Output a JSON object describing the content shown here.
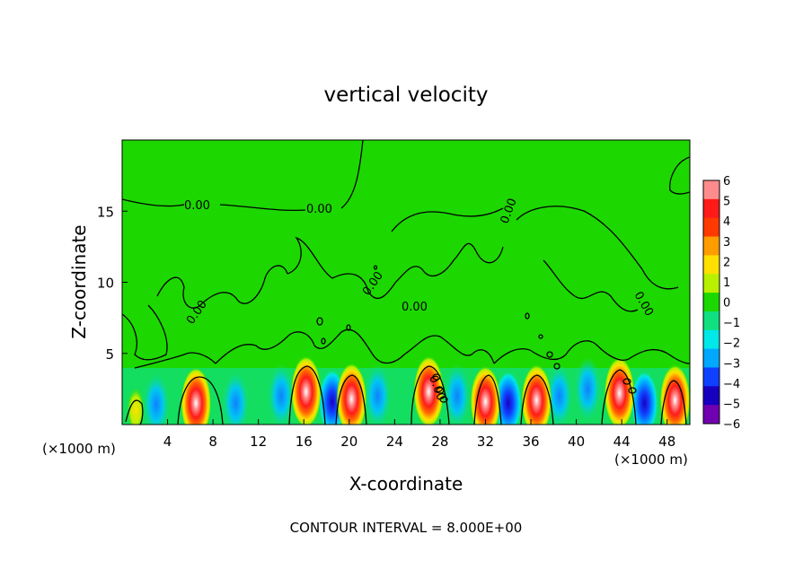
{
  "chart_data": {
    "type": "heatmap",
    "title": "vertical velocity",
    "xlabel": "X-coordinate",
    "ylabel": "Z-coordinate",
    "x_unit_label_left": "(×1000 m)",
    "x_unit_label_right": "(×1000 m)",
    "footer": "CONTOUR INTERVAL = 8.000E+00",
    "xlim": [
      0,
      50
    ],
    "ylim": [
      0,
      20
    ],
    "x_ticks": [
      "4",
      "8",
      "12",
      "16",
      "20",
      "24",
      "28",
      "32",
      "36",
      "40",
      "44",
      "48"
    ],
    "y_ticks": [
      "5",
      "10",
      "15"
    ],
    "grid": false,
    "colorbar": {
      "labels": [
        "6",
        "5",
        "4",
        "3",
        "2",
        "1",
        "0",
        "−1",
        "−2",
        "−3",
        "−4",
        "−5",
        "−6"
      ],
      "colors": [
        "#ff8c8c",
        "#ff1a1a",
        "#ff3a00",
        "#ff9c00",
        "#ffe000",
        "#b8f000",
        "#1cd800",
        "#10e080",
        "#00e8e8",
        "#00a8ff",
        "#1040ff",
        "#1800c0",
        "#7000b0"
      ]
    },
    "contour_labels": [
      "0.00",
      "0.00",
      "0.00",
      "0.00",
      "0.00",
      "0.00",
      "0.00",
      "0.00"
    ],
    "updrafts": [
      {
        "x": 1.2,
        "z": 1.0,
        "peak": 3
      },
      {
        "x": 6.5,
        "z": 1.5,
        "peak": 6
      },
      {
        "x": 16.2,
        "z": 2.3,
        "peak": 6
      },
      {
        "x": 20.2,
        "z": 1.8,
        "peak": 6
      },
      {
        "x": 27.0,
        "z": 2.3,
        "peak": 6
      },
      {
        "x": 32.0,
        "z": 1.6,
        "peak": 6
      },
      {
        "x": 36.5,
        "z": 1.7,
        "peak": 6
      },
      {
        "x": 43.8,
        "z": 2.2,
        "peak": 5
      },
      {
        "x": 48.7,
        "z": 1.7,
        "peak": 6
      }
    ],
    "downdrafts": [
      {
        "x": 3.0,
        "z": 1.4,
        "peak": -3
      },
      {
        "x": 10.0,
        "z": 1.5,
        "peak": -3
      },
      {
        "x": 14.0,
        "z": 2.0,
        "peak": -3
      },
      {
        "x": 18.5,
        "z": 1.6,
        "peak": -4
      },
      {
        "x": 22.5,
        "z": 2.0,
        "peak": -3
      },
      {
        "x": 29.5,
        "z": 2.0,
        "peak": -3
      },
      {
        "x": 34.0,
        "z": 1.5,
        "peak": -5
      },
      {
        "x": 38.5,
        "z": 2.0,
        "peak": -3
      },
      {
        "x": 41.0,
        "z": 2.5,
        "peak": -3
      },
      {
        "x": 46.0,
        "z": 1.5,
        "peak": -4
      }
    ]
  }
}
